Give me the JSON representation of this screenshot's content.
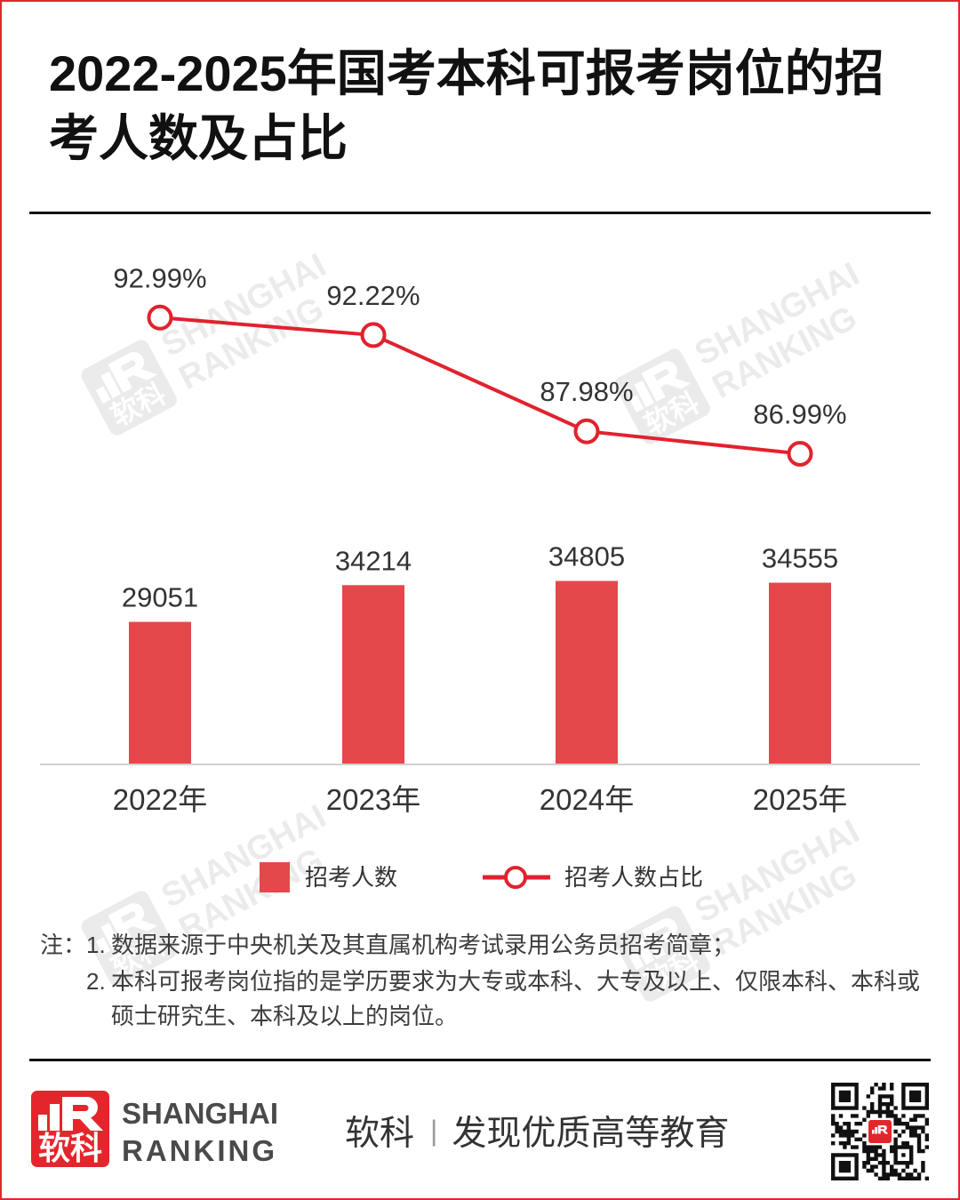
{
  "chart_data": {
    "type": "bar",
    "title": "2022-2025年国考本科可报考岗位的招考人数及占比",
    "categories": [
      "2022年",
      "2023年",
      "2024年",
      "2025年"
    ],
    "series": [
      {
        "name": "招考人数",
        "type": "bar",
        "values": [
          29051,
          34214,
          34805,
          34555
        ],
        "ylim": [
          9000,
          84000
        ]
      },
      {
        "name": "招考人数占比",
        "type": "line",
        "unit": "%",
        "values": [
          92.99,
          92.22,
          87.98,
          86.99
        ],
        "ylim": [
          73.3,
          96.8
        ]
      }
    ],
    "grid": false,
    "legend": "bottom"
  },
  "notes": {
    "prefix": "注：",
    "items": [
      {
        "num": "1.",
        "text": "数据来源于中央机关及其直属机构考试录用公务员招考简章；"
      },
      {
        "num": "2.",
        "text": "本科可报考岗位指的是学历要求为大专或本科、大专及以上、仅限本科、本科或硕士研究生、本科及以上的岗位。"
      }
    ]
  },
  "footer": {
    "logo": {
      "cn": "软科",
      "en_line1": "SHANGHAI",
      "en_line2": "RANKING"
    },
    "brand": "软科",
    "separator": "|",
    "slogan": "发现优质高等教育"
  },
  "watermark": {
    "logo_text": "软科",
    "line1": "SHANGHAI",
    "line2": "RANKING"
  },
  "colors": {
    "bar": "#E5484B",
    "line": "#E1222E",
    "border": "#E1282D",
    "logo": "#E4262C",
    "rule": "#111111"
  }
}
